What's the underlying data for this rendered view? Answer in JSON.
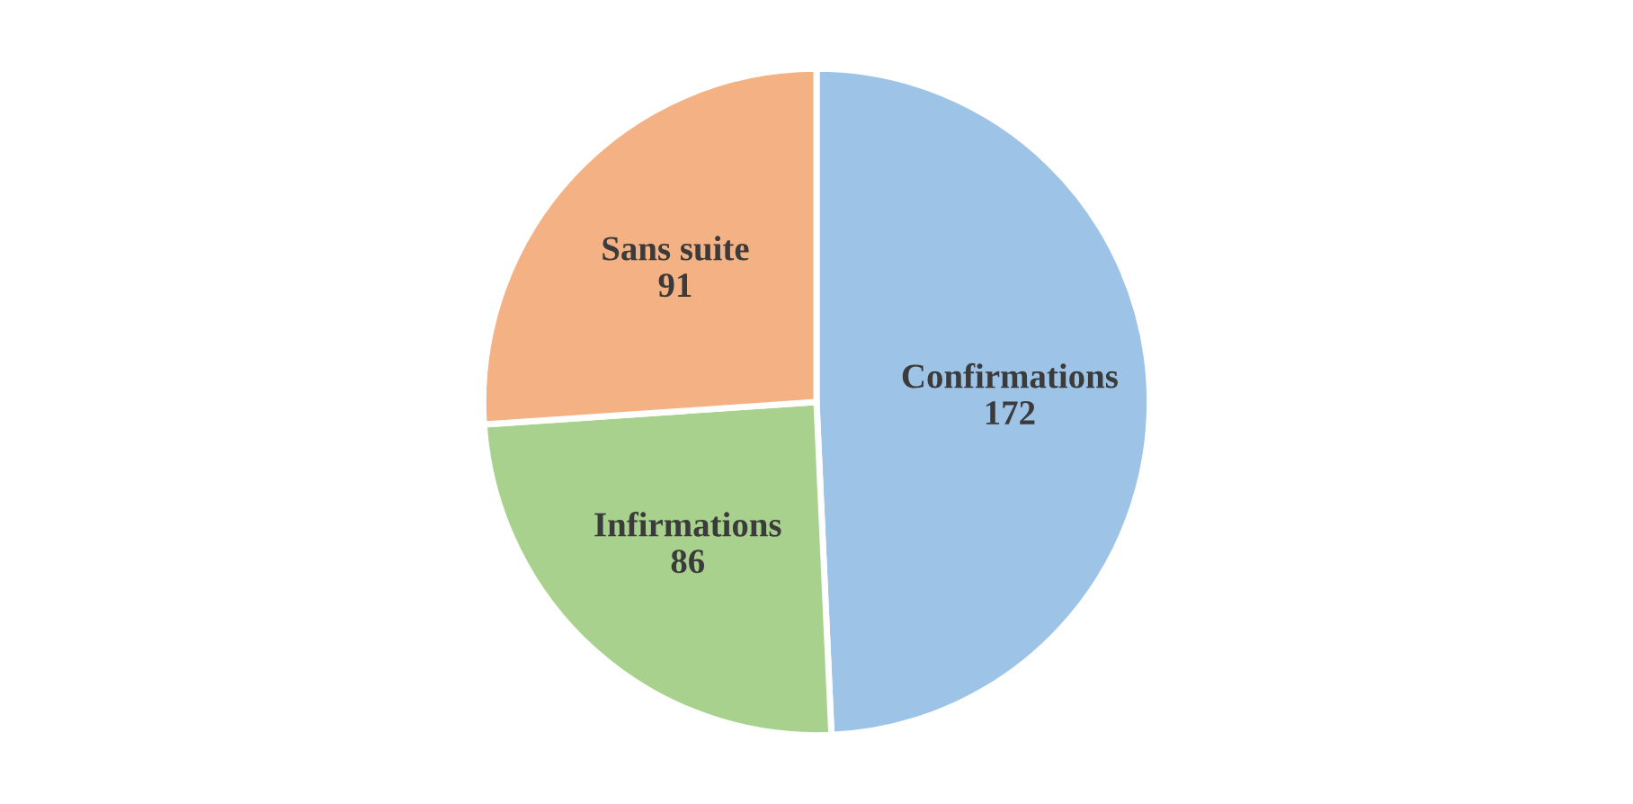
{
  "chart_data": {
    "type": "pie",
    "categories": [
      "Confirmations",
      "Infirmations",
      "Sans suite"
    ],
    "values": [
      172,
      86,
      91
    ],
    "colors": [
      "#9dc3e6",
      "#a9d18e",
      "#f4b183"
    ],
    "data_labels": true
  }
}
